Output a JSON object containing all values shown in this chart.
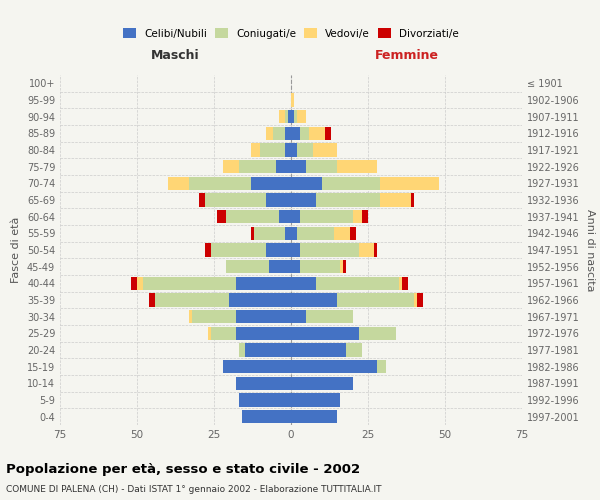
{
  "age_groups": [
    "0-4",
    "5-9",
    "10-14",
    "15-19",
    "20-24",
    "25-29",
    "30-34",
    "35-39",
    "40-44",
    "45-49",
    "50-54",
    "55-59",
    "60-64",
    "65-69",
    "70-74",
    "75-79",
    "80-84",
    "85-89",
    "90-94",
    "95-99",
    "100+"
  ],
  "birth_years": [
    "1997-2001",
    "1992-1996",
    "1987-1991",
    "1982-1986",
    "1977-1981",
    "1972-1976",
    "1967-1971",
    "1962-1966",
    "1957-1961",
    "1952-1956",
    "1947-1951",
    "1942-1946",
    "1937-1941",
    "1932-1936",
    "1927-1931",
    "1922-1926",
    "1917-1921",
    "1912-1916",
    "1907-1911",
    "1902-1906",
    "≤ 1901"
  ],
  "maschi": {
    "celibi": [
      16,
      17,
      18,
      22,
      15,
      18,
      18,
      20,
      18,
      7,
      8,
      2,
      4,
      8,
      13,
      5,
      2,
      2,
      1,
      0,
      0
    ],
    "coniugati": [
      0,
      0,
      0,
      0,
      2,
      8,
      14,
      24,
      30,
      14,
      18,
      10,
      17,
      20,
      20,
      12,
      8,
      4,
      1,
      0,
      0
    ],
    "vedovi": [
      0,
      0,
      0,
      0,
      0,
      1,
      1,
      0,
      2,
      0,
      0,
      0,
      0,
      0,
      7,
      5,
      3,
      2,
      2,
      0,
      0
    ],
    "divorziati": [
      0,
      0,
      0,
      0,
      0,
      0,
      0,
      2,
      2,
      0,
      2,
      1,
      3,
      2,
      0,
      0,
      0,
      0,
      0,
      0,
      0
    ]
  },
  "femmine": {
    "nubili": [
      15,
      16,
      20,
      28,
      18,
      22,
      5,
      15,
      8,
      3,
      3,
      2,
      3,
      8,
      10,
      5,
      2,
      3,
      1,
      0,
      0
    ],
    "coniugate": [
      0,
      0,
      0,
      3,
      5,
      12,
      15,
      25,
      27,
      13,
      19,
      12,
      17,
      21,
      19,
      10,
      5,
      3,
      1,
      0,
      0
    ],
    "vedove": [
      0,
      0,
      0,
      0,
      0,
      0,
      0,
      1,
      1,
      1,
      5,
      5,
      3,
      10,
      19,
      13,
      8,
      5,
      3,
      1,
      0
    ],
    "divorziate": [
      0,
      0,
      0,
      0,
      0,
      0,
      0,
      2,
      2,
      1,
      1,
      2,
      2,
      1,
      0,
      0,
      0,
      2,
      0,
      0,
      0
    ]
  },
  "colors": {
    "celibi": "#4472c4",
    "coniugati": "#c5d89e",
    "vedovi": "#ffd675",
    "divorziati": "#cc0000"
  },
  "title": "Popolazione per età, sesso e stato civile - 2002",
  "subtitle": "COMUNE DI PALENA (CH) - Dati ISTAT 1° gennaio 2002 - Elaborazione TUTTITALIA.IT",
  "xlabel_left": "Maschi",
  "xlabel_right": "Femmine",
  "ylabel_left": "Fasce di età",
  "ylabel_right": "Anni di nascita",
  "xlim": 75,
  "bg_color": "#f5f5f0",
  "grid_color": "#cccccc"
}
